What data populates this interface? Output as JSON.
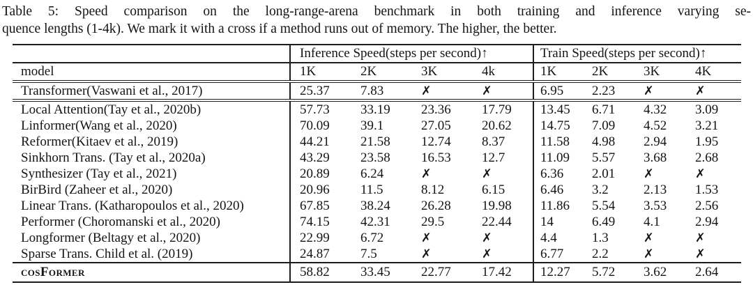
{
  "caption": {
    "line1": "Table 5: Speed comparison on the long-range-arena benchmark in both training and inference varying se-",
    "line2": "quence lengths (1-4k). We mark it with a cross if a method runs out of memory. The higher, the better."
  },
  "table": {
    "group_headers": [
      {
        "label": "",
        "span": 1
      },
      {
        "label": "Inference Speed(steps per second)↑",
        "span": 4
      },
      {
        "label": "Train Speed(steps per second)↑",
        "span": 4
      }
    ],
    "column_headers": [
      "model",
      "1K",
      "2K",
      "3K",
      "4k",
      "1K",
      "2K",
      "3K",
      "4K"
    ],
    "oom_symbol": "✗",
    "rows": [
      {
        "model": "Transformer(Vaswani et al., 2017)",
        "values": [
          "25.37",
          "7.83",
          "✗",
          "✗",
          "6.95",
          "2.23",
          "✗",
          "✗"
        ],
        "section_end": true
      },
      {
        "model": "Local Attention(Tay et al., 2020b)",
        "values": [
          "57.73",
          "33.19",
          "23.36",
          "17.79",
          "13.45",
          "6.71",
          "4.32",
          "3.09"
        ]
      },
      {
        "model": "Linformer(Wang et al., 2020)",
        "values": [
          "70.09",
          "39.1",
          "27.05",
          "20.62",
          "14.75",
          "7.09",
          "4.52",
          "3.21"
        ]
      },
      {
        "model": "Reformer(Kitaev et al., 2019)",
        "values": [
          "44.21",
          "21.58",
          "12.74",
          "8.37",
          "11.58",
          "4.98",
          "2.94",
          "1.95"
        ]
      },
      {
        "model": "Sinkhorn Trans. (Tay et al., 2020a)",
        "values": [
          "43.29",
          "23.58",
          "16.53",
          "12.7",
          "11.09",
          "5.57",
          "3.68",
          "2.68"
        ]
      },
      {
        "model": "Synthesizer (Tay et al., 2021)",
        "values": [
          "20.89",
          "6.24",
          "✗",
          "✗",
          "6.36",
          "2.01",
          "✗",
          "✗"
        ]
      },
      {
        "model": "BirBird (Zaheer et al., 2020)",
        "values": [
          "20.96",
          "11.5",
          "8.12",
          "6.15",
          "6.46",
          "3.2",
          "2.13",
          "1.53"
        ]
      },
      {
        "model": "Linear Trans. (Katharopoulos et al., 2020)",
        "values": [
          "67.85",
          "38.24",
          "26.28",
          "19.98",
          "11.86",
          "5.54",
          "3.53",
          "2.56"
        ]
      },
      {
        "model": "Performer (Choromanski et al., 2020)",
        "values": [
          "74.15",
          "42.31",
          "29.5",
          "22.44",
          "14",
          "6.49",
          "4.1",
          "2.94"
        ]
      },
      {
        "model": "Longformer (Beltagy et al., 2020)",
        "values": [
          "22.99",
          "6.72",
          "✗",
          "✗",
          "4.4",
          "1.3",
          "✗",
          "✗"
        ]
      },
      {
        "model": "Sparse Trans. Child et al. (2019)",
        "values": [
          "24.87",
          "7.5",
          "✗",
          "✗",
          "6.77",
          "2.2",
          "✗",
          "✗"
        ]
      },
      {
        "model": "cosFormer",
        "values": [
          "58.82",
          "33.45",
          "22.77",
          "17.42",
          "12.27",
          "5.72",
          "3.62",
          "2.64"
        ],
        "highlight": true
      }
    ]
  }
}
